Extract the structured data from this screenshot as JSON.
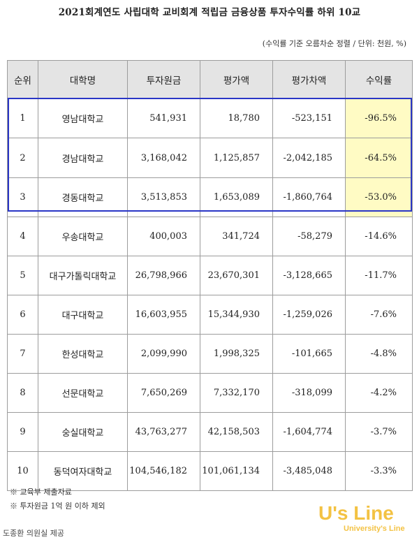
{
  "title": "2021회계연도 사립대학 교비회계 적립금 금융상품 투자수익률 하위 10교",
  "unit_note": "(수익률 기준 오름차순 정렬 / 단위: 천원, %)",
  "table": {
    "headers": [
      "순위",
      "대학명",
      "투자원금",
      "평가액",
      "평가차액",
      "수익률"
    ],
    "rows": [
      {
        "rank": "1",
        "name": "영남대학교",
        "principal": "541,931",
        "valuation": "18,780",
        "diff": "-523,151",
        "rate": "-96.5%"
      },
      {
        "rank": "2",
        "name": "경남대학교",
        "principal": "3,168,042",
        "valuation": "1,125,857",
        "diff": "-2,042,185",
        "rate": "-64.5%"
      },
      {
        "rank": "3",
        "name": "경동대학교",
        "principal": "3,513,853",
        "valuation": "1,653,089",
        "diff": "-1,860,764",
        "rate": "-53.0%"
      },
      {
        "rank": "4",
        "name": "우송대학교",
        "principal": "400,003",
        "valuation": "341,724",
        "diff": "-58,279",
        "rate": "-14.6%"
      },
      {
        "rank": "5",
        "name": "대구가톨릭대학교",
        "principal": "26,798,966",
        "valuation": "23,670,301",
        "diff": "-3,128,665",
        "rate": "-11.7%"
      },
      {
        "rank": "6",
        "name": "대구대학교",
        "principal": "16,603,955",
        "valuation": "15,344,930",
        "diff": "-1,259,026",
        "rate": "-7.6%"
      },
      {
        "rank": "7",
        "name": "한성대학교",
        "principal": "2,099,990",
        "valuation": "1,998,325",
        "diff": "-101,665",
        "rate": "-4.8%"
      },
      {
        "rank": "8",
        "name": "선문대학교",
        "principal": "7,650,269",
        "valuation": "7,332,170",
        "diff": "-318,099",
        "rate": "-4.2%"
      },
      {
        "rank": "9",
        "name": "숭실대학교",
        "principal": "43,763,277",
        "valuation": "42,158,503",
        "diff": "-1,604,774",
        "rate": "-3.7%"
      },
      {
        "rank": "10",
        "name": "동덕여자대학교",
        "principal": "104,546,182",
        "valuation": "101,061,134",
        "diff": "-3,485,048",
        "rate": "-3.3%"
      }
    ]
  },
  "footnotes": [
    "※ 교육부 제출자료",
    "※ 투자원금 1억 원 이하 제외"
  ],
  "credit": "도종환 의원실 제공",
  "logo": {
    "main": "U's Line",
    "sub": "University's Line"
  },
  "colors": {
    "highlight": "#fffbc4",
    "box_border": "#2a36c6",
    "header_bg": "#e4e4e4",
    "logo": "#f2b823"
  }
}
